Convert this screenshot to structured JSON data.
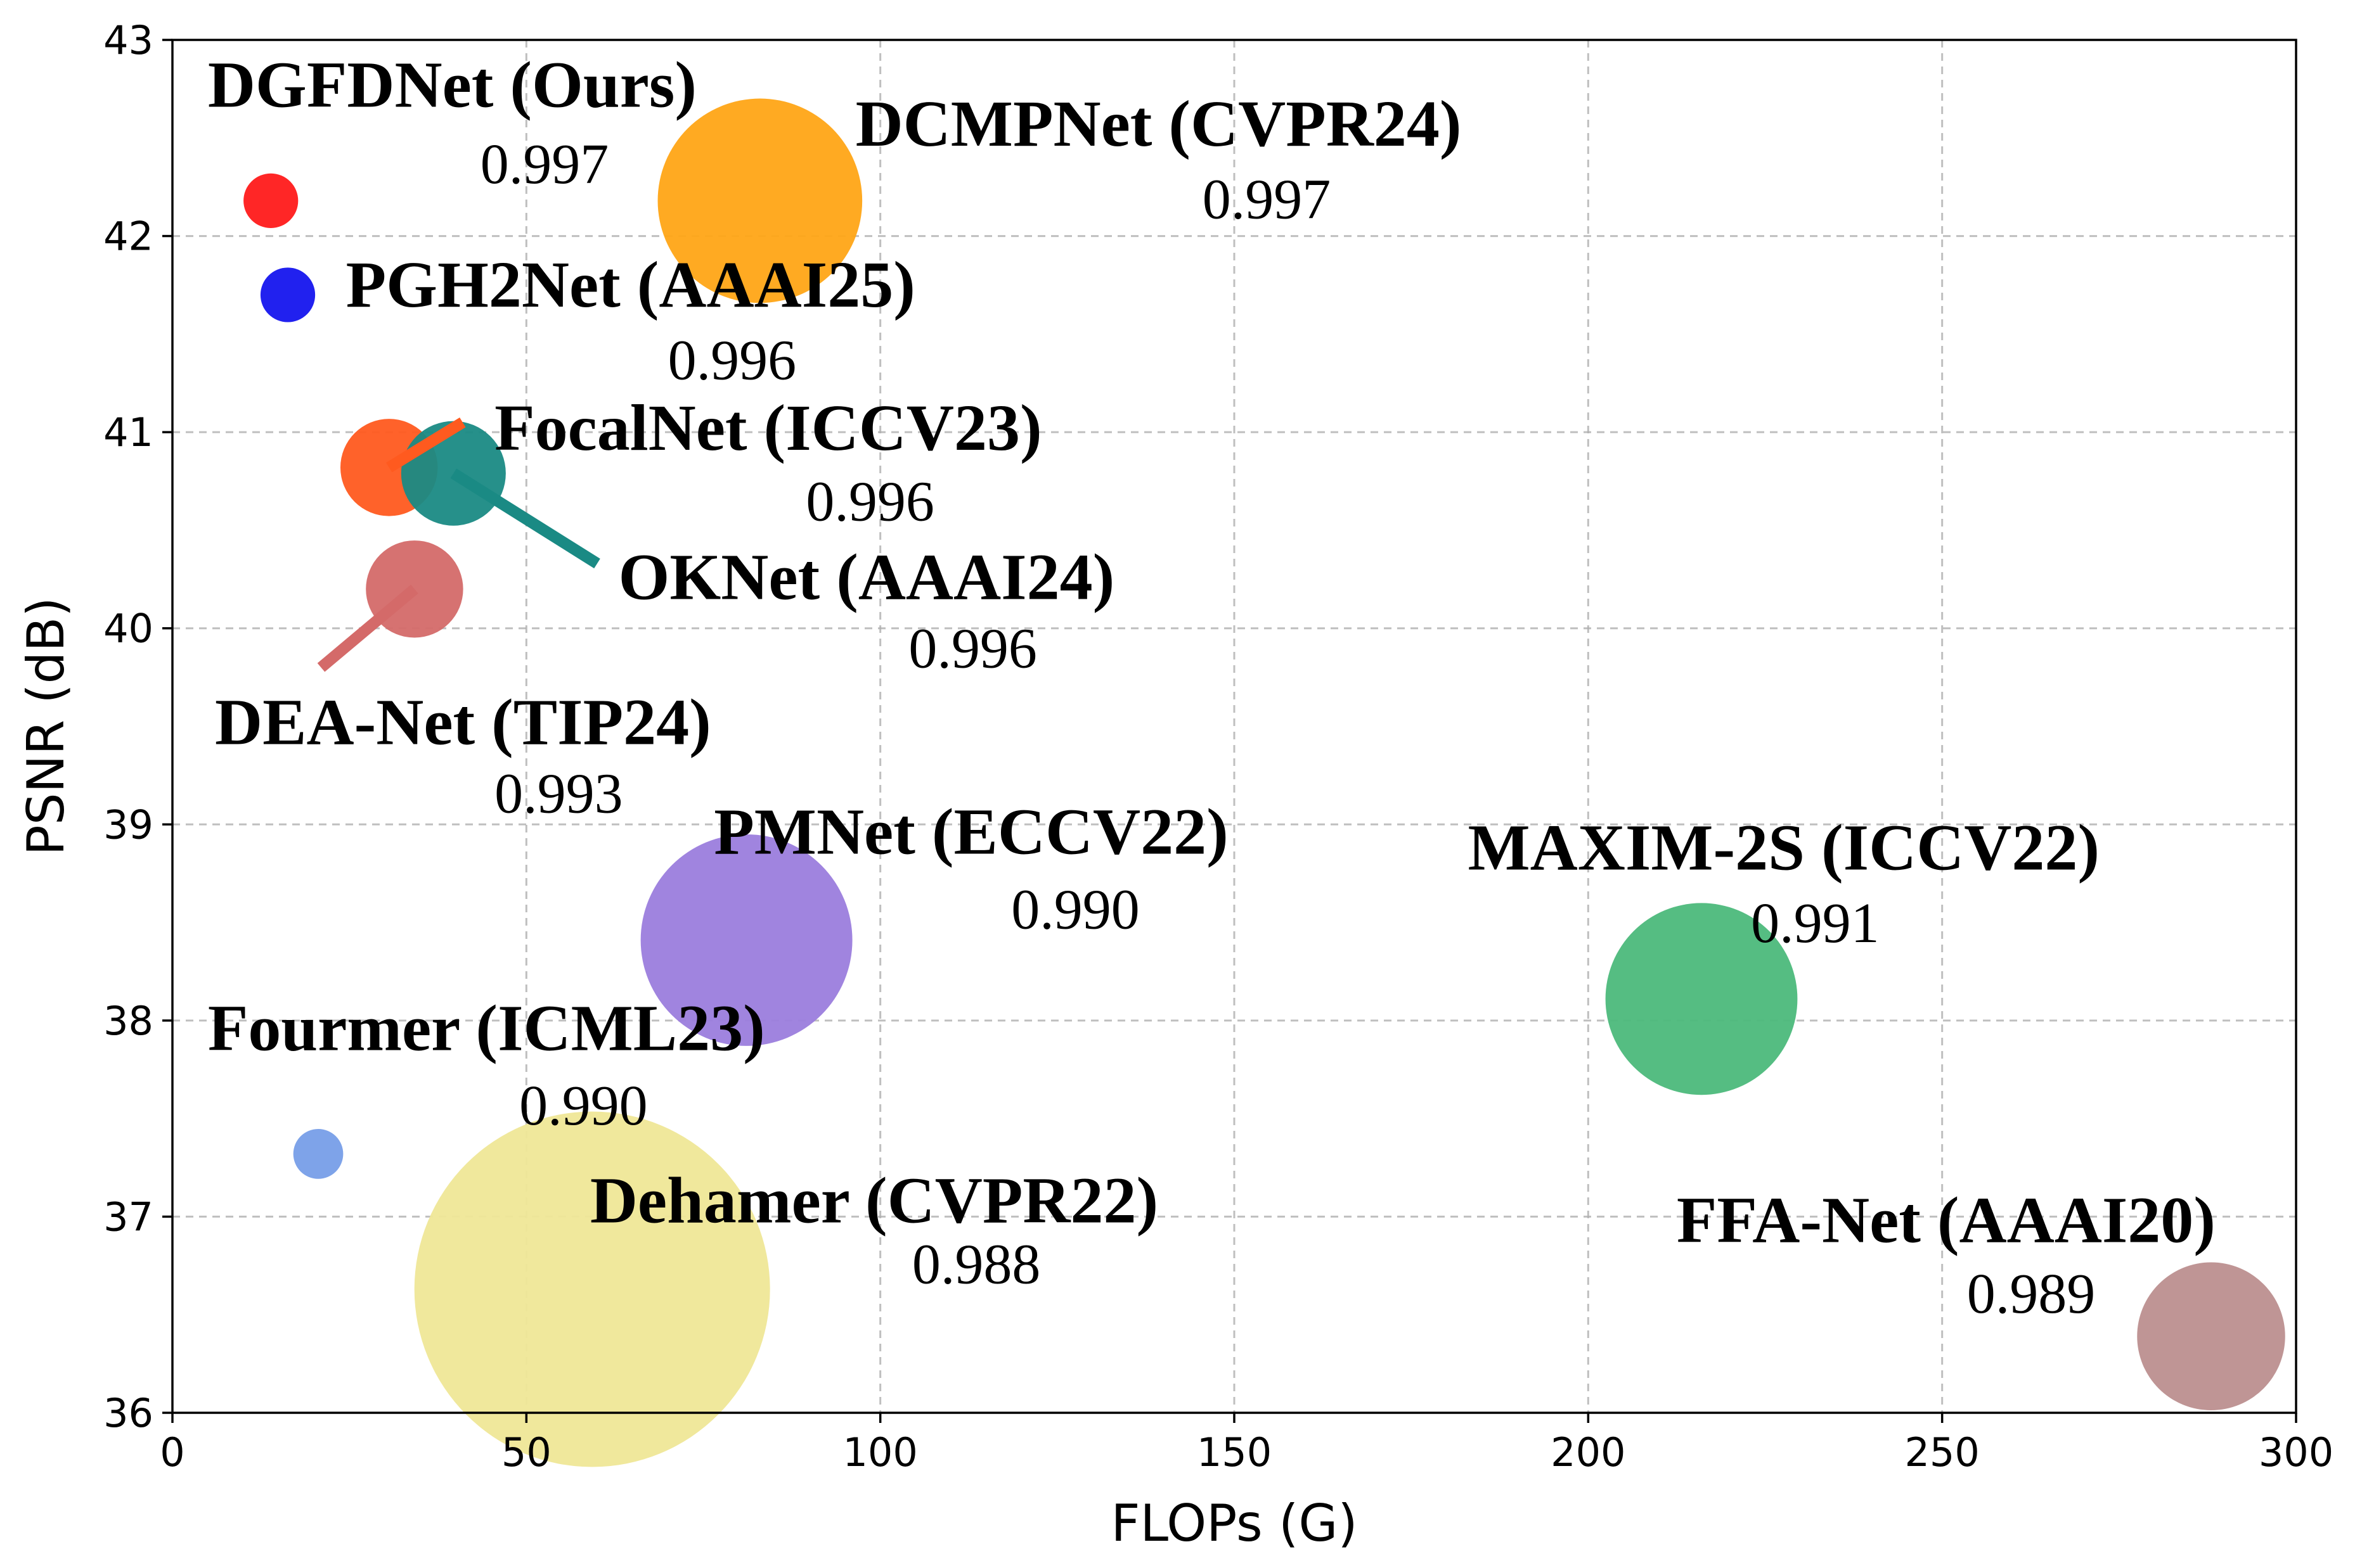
{
  "chart_data": {
    "type": "scatter",
    "title": "",
    "xlabel": "FLOPs (G)",
    "ylabel": "PSNR (dB)",
    "xlim": [
      0,
      300
    ],
    "ylim": [
      36,
      43
    ],
    "xticks": [
      0,
      50,
      100,
      150,
      200,
      250,
      300
    ],
    "yticks": [
      36,
      37,
      38,
      39,
      40,
      41,
      42,
      43
    ],
    "grid": true,
    "points": [
      {
        "name": "DGFDNet (Ours)",
        "flops": 13.9,
        "psnr": 42.18,
        "ssim": "0.997",
        "color": "#ff1a1a",
        "size": 6
      },
      {
        "name": "DCMPNet (CVPR24)",
        "flops": 83.0,
        "psnr": 42.18,
        "ssim": "0.997",
        "color": "#ffa516",
        "size": 84
      },
      {
        "name": "PGH2Net (AAAI25)",
        "flops": 16.3,
        "psnr": 41.7,
        "ssim": "0.996",
        "color": "#1515ee",
        "size": 6
      },
      {
        "name": "FocalNet (ICCV23)",
        "flops": 30.6,
        "psnr": 40.82,
        "ssim": "0.996",
        "color": "#ff5a1f",
        "size": 19
      },
      {
        "name": "OKNet (AAAI24)",
        "flops": 39.7,
        "psnr": 40.79,
        "ssim": "0.996",
        "color": "#1a8a84",
        "size": 22
      },
      {
        "name": "DEA-Net (TIP24)",
        "flops": 34.2,
        "psnr": 40.2,
        "ssim": "0.993",
        "color": "#d46a69",
        "size": 19
      },
      {
        "name": "PMNet (ECCV22)",
        "flops": 81.1,
        "psnr": 38.41,
        "ssim": "0.990",
        "color": "#9b7ddd",
        "size": 90
      },
      {
        "name": "MAXIM-2S (ICCV22)",
        "flops": 216.0,
        "psnr": 38.11,
        "ssim": "0.991",
        "color": "#4cb97b",
        "size": 74
      },
      {
        "name": "Fourmer (ICML23)",
        "flops": 20.6,
        "psnr": 37.32,
        "ssim": "0.990",
        "color": "#779ee8",
        "size": 5
      },
      {
        "name": "Dehamer (CVPR22)",
        "flops": 59.3,
        "psnr": 36.63,
        "ssim": "0.988",
        "color": "#efe797",
        "size": 254
      },
      {
        "name": "FFA-Net (AAAI20)",
        "flops": 288.0,
        "psnr": 36.39,
        "ssim": "0.989",
        "color": "#bc8f8f",
        "size": 44
      }
    ]
  }
}
